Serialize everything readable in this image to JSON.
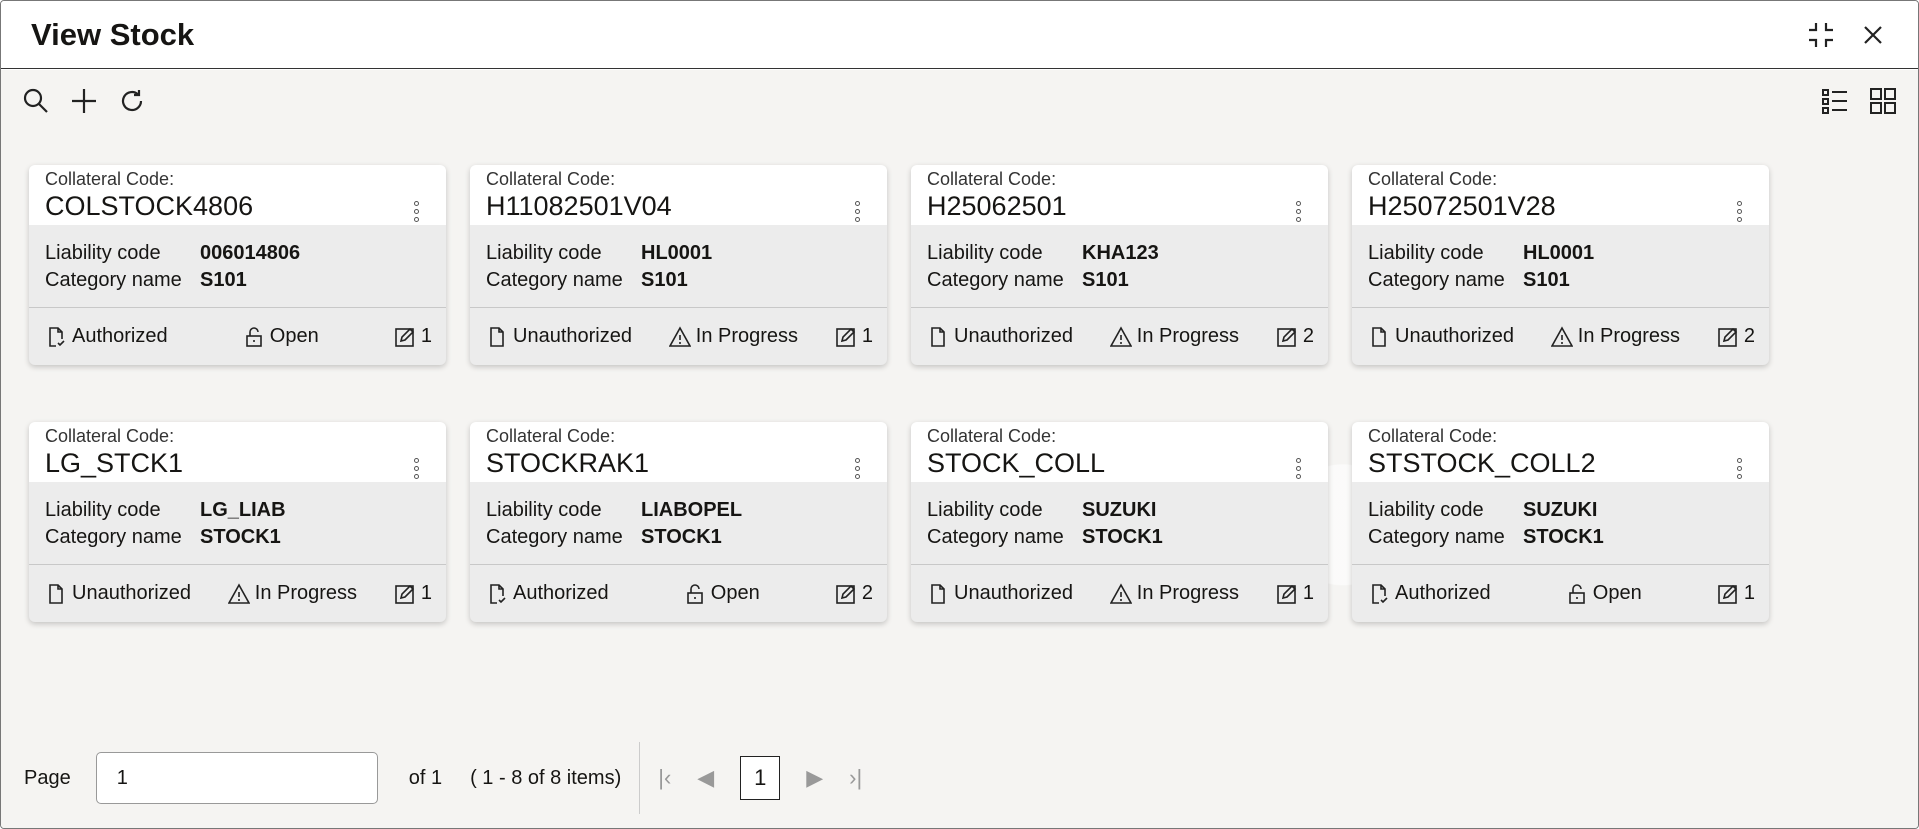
{
  "header": {
    "title": "View Stock"
  },
  "cards": [
    {
      "label": "Collateral Code:",
      "code": "COLSTOCK4806",
      "liability_label": "Liability code",
      "liability": "006014806",
      "category_label": "Category name",
      "category": "S101",
      "auth": "Authorized",
      "status": "Open",
      "versions": "1"
    },
    {
      "label": "Collateral Code:",
      "code": "H11082501V04",
      "liability_label": "Liability code",
      "liability": "HL0001",
      "category_label": "Category name",
      "category": "S101",
      "auth": "Unauthorized",
      "status": "In Progress",
      "versions": "1"
    },
    {
      "label": "Collateral Code:",
      "code": "H25062501",
      "liability_label": "Liability code",
      "liability": "KHA123",
      "category_label": "Category name",
      "category": "S101",
      "auth": "Unauthorized",
      "status": "In Progress",
      "versions": "2"
    },
    {
      "label": "Collateral Code:",
      "code": "H25072501V28",
      "liability_label": "Liability code",
      "liability": "HL0001",
      "category_label": "Category name",
      "category": "S101",
      "auth": "Unauthorized",
      "status": "In Progress",
      "versions": "2"
    },
    {
      "label": "Collateral Code:",
      "code": "LG_STCK1",
      "liability_label": "Liability code",
      "liability": "LG_LIAB",
      "category_label": "Category name",
      "category": "STOCK1",
      "auth": "Unauthorized",
      "status": "In Progress",
      "versions": "1"
    },
    {
      "label": "Collateral Code:",
      "code": "STOCKRAK1",
      "liability_label": "Liability code",
      "liability": "LIABOPEL",
      "category_label": "Category name",
      "category": "STOCK1",
      "auth": "Authorized",
      "status": "Open",
      "versions": "2"
    },
    {
      "label": "Collateral Code:",
      "code": "STOCK_COLL",
      "liability_label": "Liability code",
      "liability": "SUZUKI",
      "category_label": "Category name",
      "category": "STOCK1",
      "auth": "Unauthorized",
      "status": "In Progress",
      "versions": "1"
    },
    {
      "label": "Collateral Code:",
      "code": "STSTOCK_COLL2",
      "liability_label": "Liability code",
      "liability": "SUZUKI",
      "category_label": "Category name",
      "category": "STOCK1",
      "auth": "Authorized",
      "status": "Open",
      "versions": "1"
    }
  ],
  "pager": {
    "page_label": "Page",
    "page_value": "1",
    "of": "of 1",
    "items": "( 1 - 8 of 8 items)",
    "current": "1"
  }
}
